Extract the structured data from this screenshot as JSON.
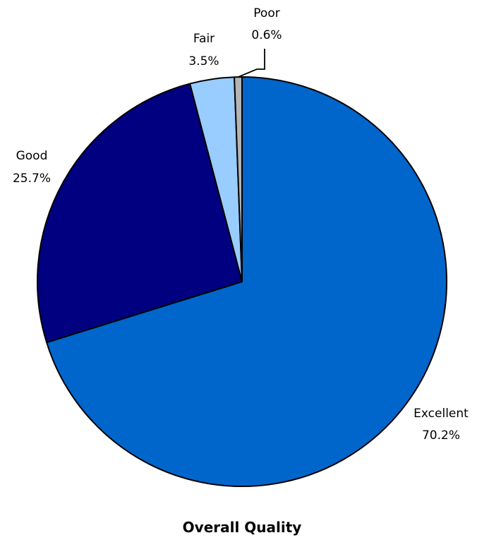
{
  "chart_data": {
    "type": "pie",
    "title": "Overall Quality",
    "slices": [
      {
        "label": "Excellent",
        "value": 70.2,
        "value_label": "70.2%",
        "color": "#0066CC"
      },
      {
        "label": "Good",
        "value": 25.7,
        "value_label": "25.7%",
        "color": "#000080"
      },
      {
        "label": "Fair",
        "value": 3.5,
        "value_label": "3.5%",
        "color": "#99CCFF"
      },
      {
        "label": "Poor",
        "value": 0.6,
        "value_label": "0.6%",
        "color": "#B4B4B4"
      }
    ],
    "start_angle_deg": 0,
    "direction": "clockwise",
    "border_color": "#000000",
    "legend": "none"
  }
}
